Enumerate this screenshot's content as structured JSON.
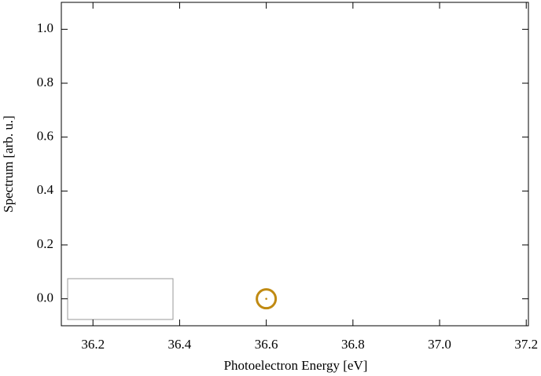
{
  "chart_data": {
    "type": "scatter",
    "x_label": "Photoelectron Energy   [eV]",
    "y_label": "Spectrum   [arb. u.]",
    "x": [
      36.6
    ],
    "values": [
      0.0
    ],
    "color": "#c08a12",
    "xlim": [
      36.127,
      37.205
    ],
    "ylim": [
      -0.1,
      1.1
    ],
    "xticks": [
      36.2,
      36.4,
      36.6,
      36.8,
      {
        "value": 37,
        "label": "37.0"
      },
      37.2
    ],
    "yticks": [
      {
        "value": 0,
        "label": "0.0"
      },
      0.2,
      0.4,
      0.6,
      0.8,
      {
        "value": 1,
        "label": "1.0"
      }
    ],
    "grid": false
  }
}
